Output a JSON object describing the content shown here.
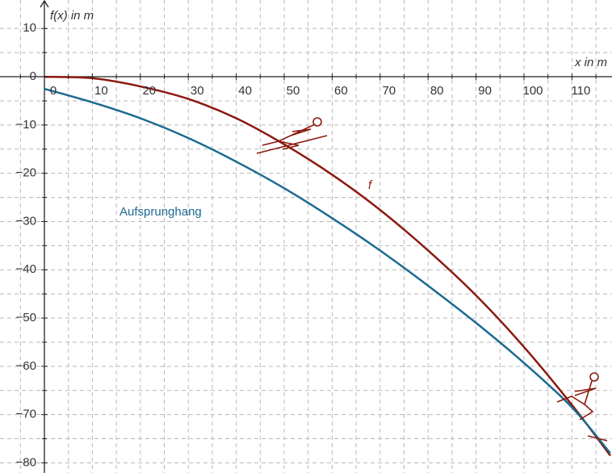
{
  "chart_data": {
    "type": "line",
    "x_label": "x in m",
    "y_label": "f(x) in m",
    "x": [
      0,
      10,
      20,
      30,
      40,
      50,
      60,
      70,
      80,
      90,
      100,
      110,
      118
    ],
    "series": [
      {
        "name": "f",
        "color": "#8b1a10",
        "values": [
          0,
          -0.3,
          -2,
          -4.6,
          -8.6,
          -14,
          -20.3,
          -27.6,
          -36,
          -45.3,
          -56,
          -68,
          -78.5
        ]
      },
      {
        "name": "Aufsprunghang",
        "color": "#1d6a91",
        "values": [
          -2.5,
          -5.3,
          -8.6,
          -12.7,
          -17.6,
          -23.1,
          -29.3,
          -36,
          -43.3,
          -51,
          -59.3,
          -68.5,
          -78
        ]
      }
    ],
    "xlim": [
      -9.26,
      118.35
    ],
    "ylim": [
      -82.1,
      15.9
    ],
    "xticks": [
      0,
      10,
      20,
      30,
      40,
      50,
      60,
      70,
      80,
      90,
      100,
      110
    ],
    "yticks": [
      10,
      0,
      {
        "value": -10,
        "label": "−10"
      },
      {
        "value": -20,
        "label": "−20"
      },
      {
        "value": -30,
        "label": "−30"
      },
      {
        "value": -40,
        "label": "−40"
      },
      {
        "value": -50,
        "label": "−50"
      },
      {
        "value": -60,
        "label": "−60"
      },
      {
        "value": -70,
        "label": "−70"
      },
      {
        "value": -80,
        "label": "−80"
      }
    ],
    "grid": true
  }
}
